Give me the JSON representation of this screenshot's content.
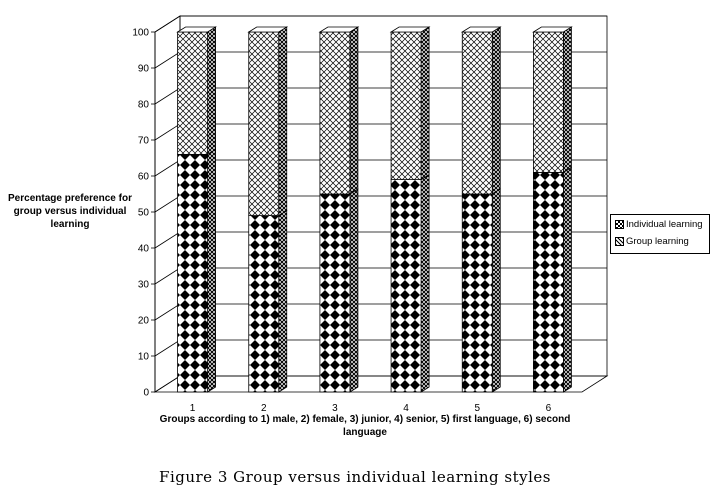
{
  "chart_data": {
    "type": "bar",
    "stacked": true,
    "three_d": true,
    "categories": [
      "1",
      "2",
      "3",
      "4",
      "5",
      "6"
    ],
    "series": [
      {
        "name": "Individual learning",
        "values": [
          66,
          49,
          55,
          59,
          55,
          61
        ],
        "pattern": "diamond-checker"
      },
      {
        "name": "Group learning",
        "values": [
          34,
          51,
          45,
          41,
          45,
          39
        ],
        "pattern": "crosshatch"
      }
    ],
    "y_ticks": [
      "0",
      "10",
      "20",
      "30",
      "40",
      "50",
      "60",
      "70",
      "80",
      "90",
      "100"
    ],
    "ylim": [
      0,
      100
    ],
    "ylabel": "Percentage preference for group versus individual learning",
    "xlabel": "Groups according to 1) male, 2) female, 3) junior, 4) senior, 5) first language, 6) second language",
    "grid": true,
    "legend_position": "right",
    "legend": [
      "Individual learning",
      "Group learning"
    ]
  },
  "caption": "Figure 3   Group versus individual learning styles"
}
